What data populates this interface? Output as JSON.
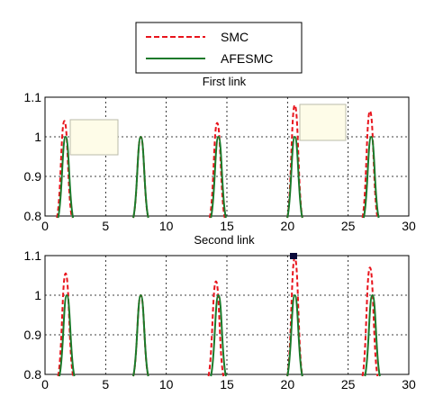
{
  "legend": {
    "entries": [
      {
        "label": "SMC",
        "color": "#e8141c",
        "dash": "dashed"
      },
      {
        "label": "AFESMC",
        "color": "#1a7a2a",
        "dash": "solid"
      }
    ]
  },
  "chart_data": [
    {
      "type": "line",
      "title": "First link",
      "xlim": [
        0,
        30
      ],
      "ylim": [
        0.8,
        1.1
      ],
      "xticks": [
        "0",
        "5",
        "10",
        "15",
        "20",
        "25",
        "30"
      ],
      "yticks": [
        "0.8",
        "0.9",
        "1",
        "1.1"
      ],
      "grid": true,
      "series": [
        {
          "name": "SMC",
          "color": "#e8141c",
          "dash": "dashed",
          "peaks": [
            {
              "x": 1.6,
              "y": 1.04
            },
            {
              "x": 7.9,
              "y": 1.0
            },
            {
              "x": 14.2,
              "y": 1.035
            },
            {
              "x": 20.6,
              "y": 1.08
            },
            {
              "x": 26.8,
              "y": 1.065
            }
          ]
        },
        {
          "name": "AFESMC",
          "color": "#1a7a2a",
          "dash": "solid",
          "peaks": [
            {
              "x": 1.7,
              "y": 1.0
            },
            {
              "x": 7.9,
              "y": 1.0
            },
            {
              "x": 14.3,
              "y": 1.0
            },
            {
              "x": 20.6,
              "y": 1.0
            },
            {
              "x": 26.9,
              "y": 1.0
            }
          ]
        }
      ]
    },
    {
      "type": "line",
      "title": "Second link",
      "xlim": [
        0,
        30
      ],
      "ylim": [
        0.8,
        1.1
      ],
      "xticks": [
        "0",
        "5",
        "10",
        "15",
        "20",
        "25",
        "30"
      ],
      "yticks": [
        "0.8",
        "0.9",
        "1",
        "1.1"
      ],
      "grid": true,
      "series": [
        {
          "name": "SMC",
          "color": "#e8141c",
          "dash": "dashed",
          "peaks": [
            {
              "x": 1.7,
              "y": 1.055
            },
            {
              "x": 7.9,
              "y": 1.0
            },
            {
              "x": 14.1,
              "y": 1.035
            },
            {
              "x": 20.6,
              "y": 1.095
            },
            {
              "x": 26.8,
              "y": 1.07
            }
          ]
        },
        {
          "name": "AFESMC",
          "color": "#1a7a2a",
          "dash": "solid",
          "peaks": [
            {
              "x": 1.8,
              "y": 1.0
            },
            {
              "x": 7.9,
              "y": 1.0
            },
            {
              "x": 14.3,
              "y": 1.0
            },
            {
              "x": 20.6,
              "y": 1.0
            },
            {
              "x": 27.0,
              "y": 1.0
            }
          ]
        }
      ]
    }
  ]
}
